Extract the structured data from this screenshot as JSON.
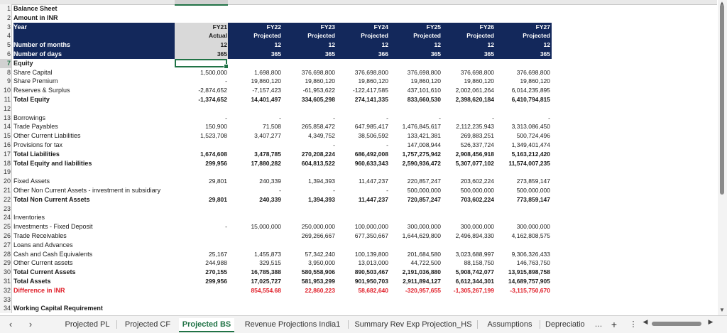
{
  "tabs": [
    "Projected PL",
    "Projected CF",
    "Projected BS",
    "Revenue Projections India1",
    "Summary Rev Exp Projection_HS",
    "Assumptions",
    "Depreciatio"
  ],
  "tab_more": "…",
  "tab_add": "+",
  "tab_menu": "⋮",
  "colors": {
    "header_navy": "#13285b",
    "red": "#e0202a",
    "accent": "#217346"
  },
  "rows": [
    {
      "n": "1",
      "label": "Balance Sheet",
      "style": "bold",
      "vals": []
    },
    {
      "n": "2",
      "label": "Amount in INR",
      "style": "bold",
      "vals": []
    },
    {
      "n": "3",
      "label": "Year",
      "style": "navy",
      "vals": [
        "FY21",
        "FY22",
        "FY23",
        "FY24",
        "FY25",
        "FY26",
        "FY27"
      ]
    },
    {
      "n": "4",
      "label": "",
      "style": "navy",
      "vals": [
        "Actual",
        "Projected",
        "Projected",
        "Projected",
        "Projected",
        "Projected",
        "Projected"
      ]
    },
    {
      "n": "5",
      "label": "Number of months",
      "style": "navy",
      "vals": [
        "12",
        "12",
        "12",
        "12",
        "12",
        "12",
        "12"
      ]
    },
    {
      "n": "6",
      "label": "Number of days",
      "style": "navy",
      "vals": [
        "365",
        "365",
        "365",
        "366",
        "365",
        "365",
        "365"
      ]
    },
    {
      "n": "7",
      "label": "Equity",
      "style": "bold",
      "vals": []
    },
    {
      "n": "8",
      "label": "Share Capital",
      "style": "",
      "vals": [
        "1,500,000",
        "1,698,800",
        "376,698,800",
        "376,698,800",
        "376,698,800",
        "376,698,800",
        "376,698,800"
      ]
    },
    {
      "n": "9",
      "label": "Share Premium",
      "style": "",
      "vals": [
        "-",
        "19,860,120",
        "19,860,120",
        "19,860,120",
        "19,860,120",
        "19,860,120",
        "19,860,120"
      ]
    },
    {
      "n": "10",
      "label": "Reserves & Surplus",
      "style": "",
      "vals": [
        "-2,874,652",
        "-7,157,423",
        "-61,953,622",
        "-122,417,585",
        "437,101,610",
        "2,002,061,264",
        "6,014,235,895"
      ]
    },
    {
      "n": "11",
      "label": "Total Equity",
      "style": "bold",
      "vals": [
        "-1,374,652",
        "14,401,497",
        "334,605,298",
        "274,141,335",
        "833,660,530",
        "2,398,620,184",
        "6,410,794,815"
      ]
    },
    {
      "n": "12",
      "label": "",
      "style": "",
      "vals": []
    },
    {
      "n": "13",
      "label": "Borrowings",
      "style": "",
      "vals": [
        "-",
        "-",
        "-",
        "-",
        "-",
        "-",
        "-"
      ]
    },
    {
      "n": "14",
      "label": "Trade Payables",
      "style": "",
      "vals": [
        "150,900",
        "71,508",
        "265,858,472",
        "647,985,417",
        "1,476,845,617",
        "2,112,235,943",
        "3,313,086,450"
      ]
    },
    {
      "n": "15",
      "label": "Other Current Liabilities",
      "style": "",
      "vals": [
        "1,523,708",
        "3,407,277",
        "4,349,752",
        "38,506,592",
        "133,421,381",
        "269,883,251",
        "500,724,496"
      ]
    },
    {
      "n": "16",
      "label": "Provisions for tax",
      "style": "",
      "vals": [
        "",
        "",
        "-",
        "-",
        "147,008,944",
        "526,337,724",
        "1,349,401,474"
      ]
    },
    {
      "n": "17",
      "label": "Total Liabilities",
      "style": "bold",
      "vals": [
        "1,674,608",
        "3,478,785",
        "270,208,224",
        "686,492,008",
        "1,757,275,942",
        "2,908,456,918",
        "5,163,212,420"
      ]
    },
    {
      "n": "18",
      "label": "Total Equity and liabilities",
      "style": "bold",
      "vals": [
        "299,956",
        "17,880,282",
        "604,813,522",
        "960,633,343",
        "2,590,936,472",
        "5,307,077,102",
        "11,574,007,235"
      ]
    },
    {
      "n": "19",
      "label": "",
      "style": "",
      "vals": []
    },
    {
      "n": "20",
      "label": "Fixed Assets",
      "style": "",
      "vals": [
        "29,801",
        "240,339",
        "1,394,393",
        "11,447,237",
        "220,857,247",
        "203,602,224",
        "273,859,147"
      ]
    },
    {
      "n": "21",
      "label": "Other Non Current Assets - investment in subsidiary",
      "style": "",
      "vals": [
        "",
        "-",
        "-",
        "-",
        "500,000,000",
        "500,000,000",
        "500,000,000"
      ]
    },
    {
      "n": "22",
      "label": "Total Non Current Assets",
      "style": "bold",
      "vals": [
        "29,801",
        "240,339",
        "1,394,393",
        "11,447,237",
        "720,857,247",
        "703,602,224",
        "773,859,147"
      ]
    },
    {
      "n": "23",
      "label": "",
      "style": "",
      "vals": []
    },
    {
      "n": "24",
      "label": "Inventories",
      "style": "",
      "vals": [
        "",
        "",
        "",
        "",
        "",
        "",
        ""
      ]
    },
    {
      "n": "25",
      "label": "Investments - Fixed Deposit",
      "style": "",
      "vals": [
        "-",
        "15,000,000",
        "250,000,000",
        "100,000,000",
        "300,000,000",
        "300,000,000",
        "300,000,000"
      ]
    },
    {
      "n": "26",
      "label": "Trade Receivables",
      "style": "",
      "vals": [
        "",
        "",
        "269,266,667",
        "677,350,667",
        "1,644,629,800",
        "2,496,894,330",
        "4,162,808,575"
      ]
    },
    {
      "n": "27",
      "label": "Loans and Advances",
      "style": "",
      "vals": [
        "",
        "",
        "",
        "",
        "",
        "",
        ""
      ]
    },
    {
      "n": "28",
      "label": "Cash and Cash Equivalents",
      "style": "",
      "vals": [
        "25,167",
        "1,455,873",
        "57,342,240",
        "100,139,800",
        "201,684,580",
        "3,023,688,997",
        "9,306,326,433"
      ]
    },
    {
      "n": "29",
      "label": "Other Current assets",
      "style": "",
      "vals": [
        "244,988",
        "329,515",
        "3,950,000",
        "13,013,000",
        "44,722,500",
        "88,158,750",
        "146,763,750"
      ]
    },
    {
      "n": "30",
      "label": "Total Current Assets",
      "style": "bold",
      "vals": [
        "270,155",
        "16,785,388",
        "580,558,906",
        "890,503,467",
        "2,191,036,880",
        "5,908,742,077",
        "13,915,898,758"
      ]
    },
    {
      "n": "31",
      "label": "Total Assets",
      "style": "bold",
      "vals": [
        "299,956",
        "17,025,727",
        "581,953,299",
        "901,950,703",
        "2,911,894,127",
        "6,612,344,301",
        "14,689,757,905"
      ]
    },
    {
      "n": "32",
      "label": "Difference in INR",
      "style": "red",
      "vals": [
        "",
        "854,554.68",
        "22,860,223",
        "58,682,640",
        "-320,957,655",
        "-1,305,267,199",
        "-3,115,750,670"
      ]
    },
    {
      "n": "33",
      "label": "",
      "style": "",
      "vals": []
    },
    {
      "n": "34",
      "label": "Working Capital Requirement",
      "style": "bold",
      "vals": []
    }
  ]
}
